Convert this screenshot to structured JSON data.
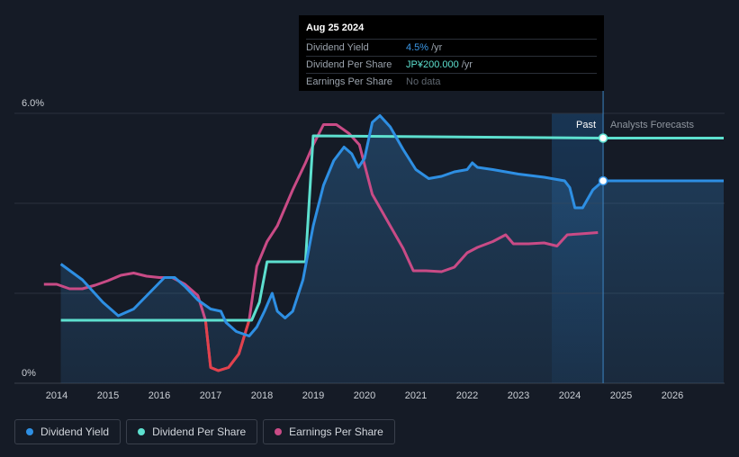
{
  "colors": {
    "background": "#151b26",
    "dividend_yield": "#2e8fe3",
    "dividend_per_share": "#5de0cf",
    "earnings_per_share": "#c94b86",
    "eps_negative": "#e2424c",
    "grid": "#2c323d",
    "axis_text": "#ccd0d6"
  },
  "tooltip": {
    "date": "Aug 25 2024",
    "rows": [
      {
        "label": "Dividend Yield",
        "value": "4.5%",
        "unit": "/yr"
      },
      {
        "label": "Dividend Per Share",
        "value": "JP¥200.000",
        "unit": "/yr"
      },
      {
        "label": "Earnings Per Share",
        "value": "No data",
        "unit": ""
      }
    ]
  },
  "regions": {
    "past": "Past",
    "forecast": "Analysts Forecasts"
  },
  "legend": [
    {
      "label": "Dividend Yield",
      "color": "#2e8fe3"
    },
    {
      "label": "Dividend Per Share",
      "color": "#5de0cf"
    },
    {
      "label": "Earnings Per Share",
      "color": "#c94b86"
    }
  ],
  "chart_data": {
    "type": "line",
    "title": "",
    "xlabel": "",
    "ylabel": "",
    "x_range": [
      2013.5,
      2027.0
    ],
    "ylim": [
      0,
      6.0
    ],
    "y_ticks": [
      {
        "value": 6.0,
        "label": "6.0%"
      },
      {
        "value": 0,
        "label": "0%"
      }
    ],
    "y_gridlines": [
      6.0,
      4.0,
      2.0
    ],
    "x_ticks": [
      "2014",
      "2015",
      "2016",
      "2017",
      "2018",
      "2019",
      "2020",
      "2021",
      "2022",
      "2023",
      "2024",
      "2025",
      "2026"
    ],
    "past_boundary": 2024.65,
    "forecast_shade_start": 2023.65,
    "series": [
      {
        "name": "Dividend Yield",
        "unit": "%",
        "area": true,
        "points": [
          [
            2014.08,
            2.65
          ],
          [
            2014.5,
            2.3
          ],
          [
            2014.9,
            1.8
          ],
          [
            2015.2,
            1.5
          ],
          [
            2015.5,
            1.65
          ],
          [
            2015.8,
            2.0
          ],
          [
            2016.1,
            2.35
          ],
          [
            2016.3,
            2.35
          ],
          [
            2016.5,
            2.15
          ],
          [
            2016.75,
            1.85
          ],
          [
            2017.0,
            1.65
          ],
          [
            2017.2,
            1.6
          ],
          [
            2017.3,
            1.35
          ],
          [
            2017.5,
            1.15
          ],
          [
            2017.75,
            1.05
          ],
          [
            2017.9,
            1.25
          ],
          [
            2018.05,
            1.6
          ],
          [
            2018.2,
            2.0
          ],
          [
            2018.3,
            1.6
          ],
          [
            2018.45,
            1.45
          ],
          [
            2018.6,
            1.6
          ],
          [
            2018.8,
            2.3
          ],
          [
            2019.0,
            3.5
          ],
          [
            2019.2,
            4.4
          ],
          [
            2019.4,
            4.95
          ],
          [
            2019.6,
            5.25
          ],
          [
            2019.75,
            5.1
          ],
          [
            2019.88,
            4.8
          ],
          [
            2020.0,
            5.0
          ],
          [
            2020.15,
            5.8
          ],
          [
            2020.3,
            5.95
          ],
          [
            2020.5,
            5.7
          ],
          [
            2020.75,
            5.2
          ],
          [
            2021.0,
            4.75
          ],
          [
            2021.25,
            4.55
          ],
          [
            2021.5,
            4.6
          ],
          [
            2021.75,
            4.7
          ],
          [
            2022.0,
            4.75
          ],
          [
            2022.1,
            4.9
          ],
          [
            2022.2,
            4.8
          ],
          [
            2022.5,
            4.75
          ],
          [
            2023.0,
            4.65
          ],
          [
            2023.5,
            4.58
          ],
          [
            2023.9,
            4.5
          ],
          [
            2024.0,
            4.35
          ],
          [
            2024.1,
            3.9
          ],
          [
            2024.25,
            3.9
          ],
          [
            2024.45,
            4.3
          ],
          [
            2024.65,
            4.5
          ],
          [
            2027.0,
            4.5
          ]
        ]
      },
      {
        "name": "Dividend Per Share",
        "unit": "JP¥",
        "points": [
          [
            2014.08,
            1.4
          ],
          [
            2017.8,
            1.4
          ],
          [
            2017.95,
            1.8
          ],
          [
            2018.1,
            2.7
          ],
          [
            2018.85,
            2.7
          ],
          [
            2019.0,
            5.5
          ],
          [
            2024.65,
            5.45
          ],
          [
            2027.0,
            5.45
          ]
        ]
      },
      {
        "name": "Earnings Per Share",
        "unit": "JP¥",
        "points": [
          [
            2013.75,
            2.2
          ],
          [
            2014.0,
            2.2
          ],
          [
            2014.25,
            2.1
          ],
          [
            2014.5,
            2.1
          ],
          [
            2014.75,
            2.18
          ],
          [
            2015.0,
            2.28
          ],
          [
            2015.25,
            2.4
          ],
          [
            2015.5,
            2.45
          ],
          [
            2015.75,
            2.38
          ],
          [
            2016.0,
            2.35
          ],
          [
            2016.25,
            2.35
          ],
          [
            2016.5,
            2.2
          ],
          [
            2016.75,
            1.95
          ],
          [
            2016.9,
            1.4
          ],
          [
            2017.0,
            0.35
          ],
          [
            2017.15,
            0.28
          ],
          [
            2017.35,
            0.35
          ],
          [
            2017.55,
            0.65
          ],
          [
            2017.75,
            1.4
          ],
          [
            2017.9,
            2.6
          ],
          [
            2018.1,
            3.15
          ],
          [
            2018.3,
            3.5
          ],
          [
            2018.6,
            4.3
          ],
          [
            2018.85,
            4.9
          ],
          [
            2019.0,
            5.3
          ],
          [
            2019.2,
            5.75
          ],
          [
            2019.45,
            5.75
          ],
          [
            2019.7,
            5.55
          ],
          [
            2019.9,
            5.3
          ],
          [
            2020.15,
            4.2
          ],
          [
            2020.5,
            3.5
          ],
          [
            2020.75,
            3.0
          ],
          [
            2020.95,
            2.5
          ],
          [
            2021.2,
            2.5
          ],
          [
            2021.5,
            2.48
          ],
          [
            2021.75,
            2.58
          ],
          [
            2022.0,
            2.9
          ],
          [
            2022.2,
            3.02
          ],
          [
            2022.5,
            3.15
          ],
          [
            2022.75,
            3.3
          ],
          [
            2022.9,
            3.1
          ],
          [
            2023.2,
            3.1
          ],
          [
            2023.5,
            3.12
          ],
          [
            2023.75,
            3.05
          ],
          [
            2023.95,
            3.3
          ],
          [
            2024.2,
            3.32
          ],
          [
            2024.55,
            3.35
          ]
        ]
      }
    ],
    "eps_negative_segment": {
      "from": 2016.85,
      "to": 2017.75
    },
    "markers": [
      {
        "series": "Dividend Per Share",
        "x": 2024.65,
        "value": 5.45
      },
      {
        "series": "Dividend Yield",
        "x": 2024.65,
        "value": 4.5
      }
    ]
  }
}
